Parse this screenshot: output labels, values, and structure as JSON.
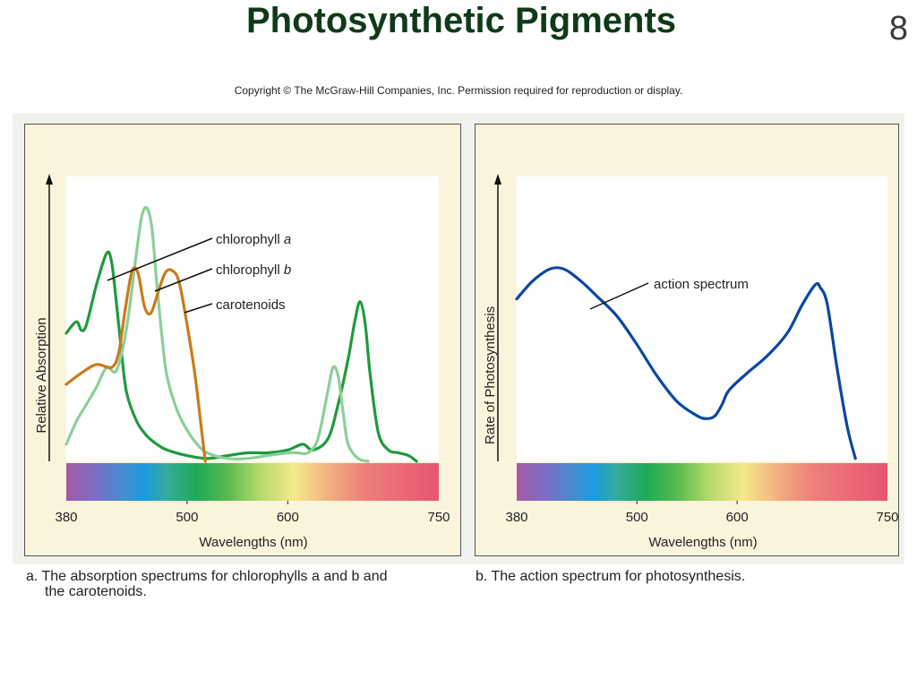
{
  "slide": {
    "title": "Photosynthetic Pigments",
    "number": "8",
    "copyright": "Copyright © The McGraw-Hill Companies, Inc. Permission required for reproduction or display."
  },
  "captions": {
    "a_line1": "a. The absorption spectrums for chlorophylls a and b and",
    "a_line2": "the carotenoids.",
    "b": "b. The action spectrum for photosynthesis."
  },
  "colors": {
    "chlorophyll_a": "#1f9a3e",
    "chlorophyll_b": "#8ccf99",
    "carotenoids": "#c97b1a",
    "action_spectrum": "#0c47a1",
    "panel_bg": "#fbf4dc",
    "plot_bg": "#ffffff"
  },
  "chart_data": [
    {
      "type": "line",
      "panel": "a",
      "xlabel": "Wavelengths (nm)",
      "ylabel": "Relative Absorption",
      "xlim": [
        380,
        750
      ],
      "ylim": [
        0,
        100
      ],
      "xticks": [
        380,
        500,
        600,
        750
      ],
      "xtick_labels": [
        "380",
        "500",
        "600",
        "750"
      ],
      "grid": false,
      "spectrum_bar": true,
      "annotations": [
        {
          "series": "chlorophyll a",
          "text": "chlorophyll",
          "italic": "a"
        },
        {
          "series": "chlorophyll b",
          "text": "chlorophyll",
          "italic": "b"
        },
        {
          "series": "carotenoids",
          "text": "carotenoids",
          "italic": ""
        }
      ],
      "series": [
        {
          "name": "chlorophyll a",
          "color": "#1f9a3e",
          "points": [
            [
              380,
              45
            ],
            [
              390,
              49
            ],
            [
              395,
              46
            ],
            [
              400,
              48
            ],
            [
              410,
              62
            ],
            [
              420,
              73
            ],
            [
              425,
              70
            ],
            [
              430,
              55
            ],
            [
              435,
              38
            ],
            [
              440,
              24
            ],
            [
              450,
              14
            ],
            [
              460,
              9
            ],
            [
              470,
              6
            ],
            [
              480,
              4
            ],
            [
              500,
              2
            ],
            [
              520,
              1
            ],
            [
              540,
              2
            ],
            [
              560,
              3
            ],
            [
              580,
              3
            ],
            [
              600,
              4
            ],
            [
              615,
              6
            ],
            [
              625,
              4
            ],
            [
              640,
              8
            ],
            [
              650,
              20
            ],
            [
              660,
              36
            ],
            [
              667,
              50
            ],
            [
              672,
              56
            ],
            [
              677,
              48
            ],
            [
              682,
              30
            ],
            [
              690,
              10
            ],
            [
              700,
              4
            ],
            [
              710,
              3
            ],
            [
              720,
              2
            ],
            [
              728,
              0
            ]
          ]
        },
        {
          "name": "chlorophyll b",
          "color": "#8ccf99",
          "points": [
            [
              380,
              6
            ],
            [
              390,
              14
            ],
            [
              400,
              20
            ],
            [
              410,
              26
            ],
            [
              420,
              33
            ],
            [
              430,
              32
            ],
            [
              440,
              47
            ],
            [
              450,
              74
            ],
            [
              455,
              86
            ],
            [
              460,
              89
            ],
            [
              465,
              82
            ],
            [
              470,
              62
            ],
            [
              475,
              44
            ],
            [
              480,
              30
            ],
            [
              490,
              18
            ],
            [
              500,
              11
            ],
            [
              510,
              6
            ],
            [
              520,
              3
            ],
            [
              540,
              1
            ],
            [
              560,
              1
            ],
            [
              580,
              2
            ],
            [
              600,
              3
            ],
            [
              610,
              3
            ],
            [
              620,
              3
            ],
            [
              630,
              8
            ],
            [
              640,
              25
            ],
            [
              645,
              33
            ],
            [
              650,
              30
            ],
            [
              655,
              17
            ],
            [
              660,
              6
            ],
            [
              670,
              1
            ],
            [
              680,
              0
            ]
          ]
        },
        {
          "name": "carotenoids",
          "color": "#c97b1a",
          "points": [
            [
              380,
              27
            ],
            [
              395,
              31
            ],
            [
              410,
              34
            ],
            [
              425,
              33
            ],
            [
              432,
              38
            ],
            [
              438,
              52
            ],
            [
              444,
              65
            ],
            [
              448,
              68
            ],
            [
              452,
              65
            ],
            [
              458,
              54
            ],
            [
              464,
              52
            ],
            [
              470,
              58
            ],
            [
              478,
              66
            ],
            [
              485,
              67
            ],
            [
              492,
              63
            ],
            [
              500,
              48
            ],
            [
              508,
              30
            ],
            [
              514,
              12
            ],
            [
              518,
              0
            ]
          ]
        }
      ]
    },
    {
      "type": "line",
      "panel": "b",
      "xlabel": "Wavelengths (nm)",
      "ylabel": "Rate of Photosynthesis",
      "xlim": [
        380,
        750
      ],
      "ylim": [
        0,
        100
      ],
      "xticks": [
        380,
        500,
        600,
        750
      ],
      "xtick_labels": [
        "380",
        "500",
        "600",
        "750"
      ],
      "grid": false,
      "spectrum_bar": true,
      "annotations": [
        {
          "series": "action spectrum",
          "text": "action spectrum",
          "italic": ""
        }
      ],
      "series": [
        {
          "name": "action spectrum",
          "color": "#0c47a1",
          "points": [
            [
              380,
              57
            ],
            [
              395,
              63
            ],
            [
              410,
              67
            ],
            [
              420,
              68
            ],
            [
              430,
              67
            ],
            [
              445,
              63
            ],
            [
              460,
              58
            ],
            [
              480,
              51
            ],
            [
              500,
              41
            ],
            [
              520,
              30
            ],
            [
              540,
              21
            ],
            [
              560,
              16
            ],
            [
              570,
              15
            ],
            [
              578,
              16
            ],
            [
              585,
              20
            ],
            [
              592,
              25
            ],
            [
              610,
              31
            ],
            [
              630,
              37
            ],
            [
              650,
              45
            ],
            [
              665,
              55
            ],
            [
              678,
              62
            ],
            [
              683,
              61
            ],
            [
              690,
              55
            ],
            [
              700,
              32
            ],
            [
              710,
              12
            ],
            [
              718,
              1
            ]
          ]
        }
      ]
    }
  ]
}
